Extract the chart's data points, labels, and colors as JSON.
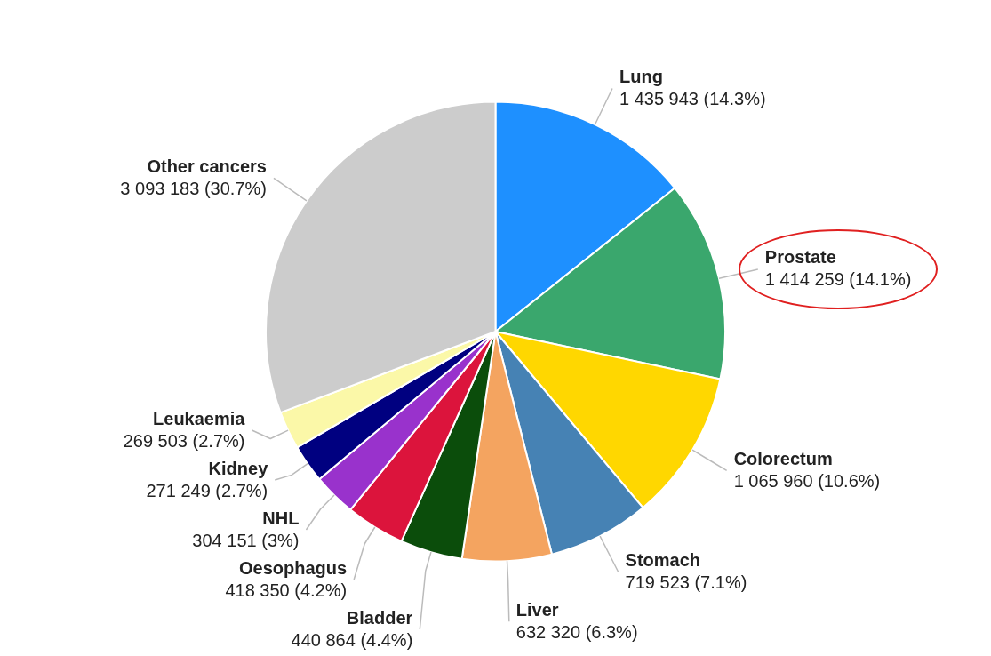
{
  "chart_data": {
    "type": "pie",
    "categories": [
      "Lung",
      "Prostate",
      "Colorectum",
      "Stomach",
      "Liver",
      "Bladder",
      "Oesophagus",
      "NHL",
      "Kidney",
      "Leukaemia",
      "Other cancers"
    ],
    "values": [
      1435943,
      1414259,
      1065960,
      719523,
      632320,
      440864,
      418350,
      304151,
      271249,
      269503,
      3093183
    ],
    "value_labels": [
      "1 435 943 (14.3%)",
      "1 414 259 (14.1%)",
      "1 065 960 (10.6%)",
      "719 523 (7.1%)",
      "632 320 (6.3%)",
      "440 864 (4.4%)",
      "418 350 (4.2%)",
      "304 151 (3%)",
      "271 249 (2.7%)",
      "269 503 (2.7%)",
      "3 093 183 (30.7%)"
    ],
    "colors": [
      "#1e90ff",
      "#3aa76d",
      "#ffd700",
      "#4682b4",
      "#f4a460",
      "#0b4d0b",
      "#dc143c",
      "#9932cc",
      "#000080",
      "#fbf8a8",
      "#cccccc"
    ]
  }
}
